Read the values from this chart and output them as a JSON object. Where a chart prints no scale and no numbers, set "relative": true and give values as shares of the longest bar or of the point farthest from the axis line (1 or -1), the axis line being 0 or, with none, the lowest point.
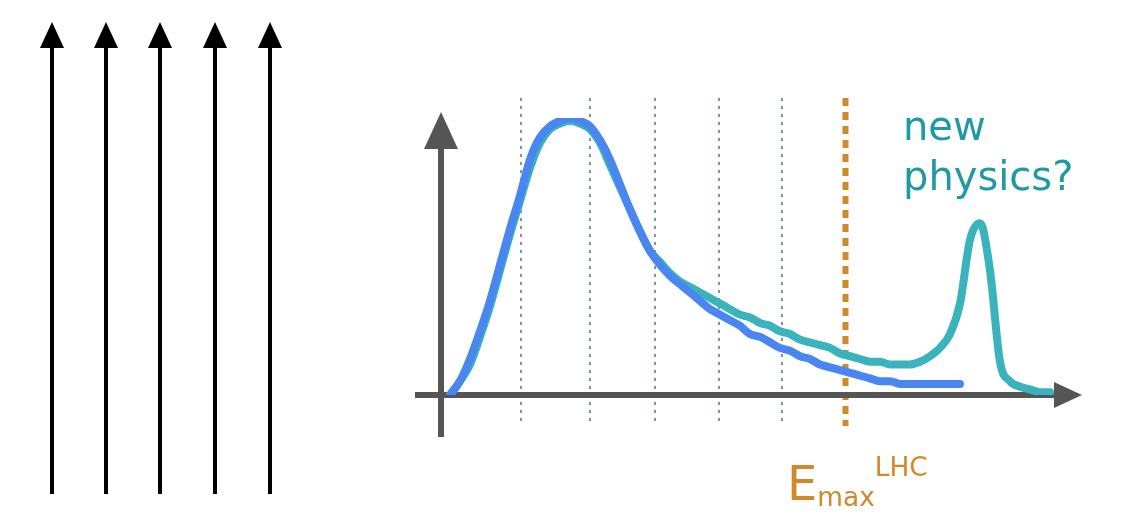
{
  "chart_data": {
    "type": "line",
    "relative": true,
    "legend": false,
    "grid": "x",
    "marker": "none",
    "line_style": "solid",
    "categories": [
      null,
      null,
      null,
      null,
      null,
      null,
      null,
      null,
      null,
      null,
      null,
      null,
      null,
      null,
      null,
      null,
      null,
      null,
      null,
      null,
      null,
      null,
      null,
      null,
      null,
      null,
      null,
      null,
      null,
      null,
      null,
      null,
      null,
      null,
      null,
      null,
      null,
      null,
      null,
      null,
      null,
      null,
      null,
      null,
      null,
      null,
      null,
      null,
      null,
      null,
      null,
      null,
      null,
      null,
      null,
      null,
      null,
      null,
      null,
      null,
      null
    ],
    "series": [
      {
        "color": "#4a86f0",
        "values": [
          0,
          0.05,
          0.13,
          0.23,
          0.34,
          0.47,
          0.6,
          0.72,
          0.85,
          0.93,
          0.97,
          0.99,
          1,
          0.99,
          0.97,
          0.92,
          0.85,
          0.76,
          0.67,
          0.59,
          0.52,
          0.47,
          0.43,
          0.4,
          0.37,
          0.34,
          0.31,
          0.29,
          0.27,
          0.25,
          0.22,
          0.21,
          0.19,
          0.17,
          0.16,
          0.14,
          0.13,
          0.11,
          0.1,
          0.09,
          0.08,
          0.07,
          0.06,
          0.05,
          0.05,
          0.04,
          0.04,
          0.04,
          0.04,
          0.04,
          0.04,
          0.04,
          null,
          null,
          null,
          null,
          null,
          null,
          null,
          null,
          null
        ]
      },
      {
        "color": "#3bb3bd",
        "values": [
          0,
          0.05,
          0.11,
          0.21,
          0.32,
          0.45,
          0.58,
          0.7,
          0.82,
          0.91,
          0.96,
          0.98,
          0.99,
          0.98,
          0.96,
          0.91,
          0.83,
          0.75,
          0.67,
          0.59,
          0.52,
          0.48,
          0.44,
          0.41,
          0.39,
          0.37,
          0.35,
          0.33,
          0.31,
          0.29,
          0.28,
          0.26,
          0.25,
          0.23,
          0.22,
          0.2,
          0.19,
          0.18,
          0.17,
          0.15,
          0.14,
          0.13,
          0.12,
          0.12,
          0.11,
          0.11,
          0.11,
          0.12,
          0.14,
          0.17,
          0.22,
          0.33,
          0.56,
          0.62,
          0.45,
          0.12,
          0.05,
          0.03,
          0.02,
          0.01,
          0.01
        ]
      }
    ],
    "annotations": [
      "new physics?",
      "E$_{max}$$^{LHC}$"
    ]
  }
}
